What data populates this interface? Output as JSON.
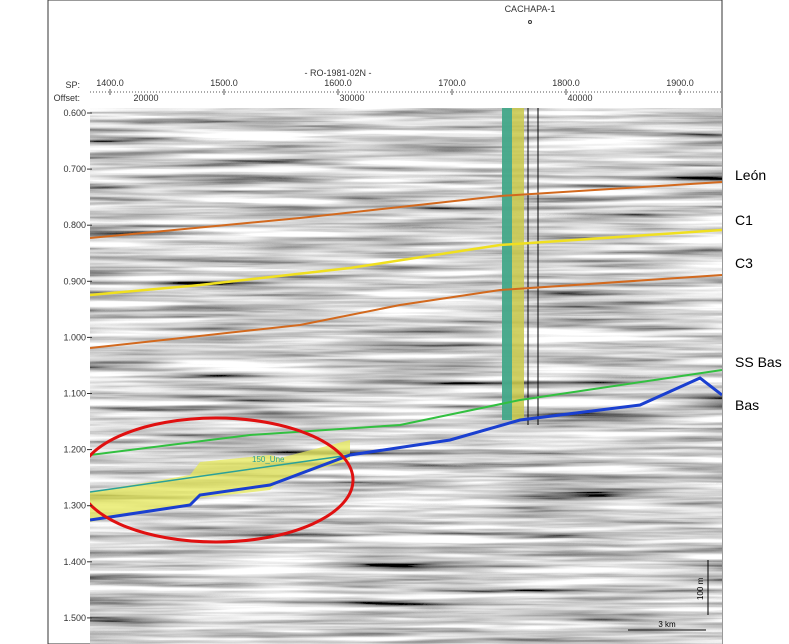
{
  "well": "CACHAPA-1",
  "line_name": "- RO-1981-02N -",
  "sp": {
    "label": "SP:",
    "ticks": [
      "1400.0",
      "1500.0",
      "1600.0",
      "1700.0",
      "1800.0",
      "1900.0"
    ]
  },
  "offset": {
    "label": "Offset:",
    "ticks": [
      "20000",
      "30000",
      "40000"
    ]
  },
  "time_ticks": [
    "0.600",
    "0.700",
    "0.800",
    "0.900",
    "1.000",
    "1.100",
    "1.200",
    "1.300",
    "1.400",
    "1.500"
  ],
  "horizons": [
    {
      "label": "León"
    },
    {
      "label": "C1"
    },
    {
      "label": "C3"
    },
    {
      "label": "SS Bas"
    },
    {
      "label": "Bas"
    }
  ],
  "annotations": {
    "unit": "150_Une",
    "vertical_scale": "100 m",
    "horizontal_scale": "3 km"
  }
}
